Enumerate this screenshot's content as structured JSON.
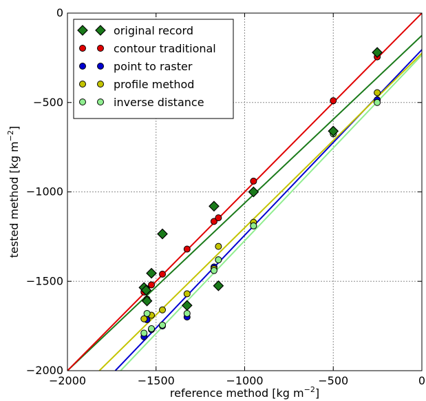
{
  "chart_data": {
    "type": "scatter",
    "title": "",
    "xlabel": "reference method [kg m",
    "xlabel_sup": "−2",
    "xlabel_end": "]",
    "ylabel": "tested method [kg m",
    "ylabel_sup": "−2",
    "ylabel_end": "]",
    "xlim": [
      -2000,
      0
    ],
    "ylim": [
      -2000,
      0
    ],
    "x_ticks": [
      -2000,
      -1500,
      -1000,
      -500,
      0
    ],
    "y_ticks": [
      -2000,
      -1500,
      -1000,
      -500,
      0
    ],
    "x_tick_labels": [
      "−2000",
      "−1500",
      "−1000",
      "−500",
      "0"
    ],
    "y_tick_labels": [
      "−2000",
      "−1500",
      "−1000",
      "−500",
      "0"
    ],
    "grid": true,
    "legend_position": "top-left",
    "series": [
      {
        "name": "original record",
        "marker": "diamond",
        "color": "#1a7a1a",
        "x": [
          -1568,
          -1556,
          -1551,
          -1526,
          -1464,
          -1325,
          -1173,
          -1148,
          -950,
          -500,
          -252
        ],
        "y": [
          -1535,
          -1550,
          -1610,
          -1455,
          -1235,
          -1635,
          -1080,
          -1525,
          -1000,
          -660,
          -220
        ],
        "fit": [
          [
            -2000,
            -2000
          ],
          [
            0,
            -125
          ]
        ]
      },
      {
        "name": "contour traditional",
        "marker": "circle",
        "color": "#e00000",
        "x": [
          -1568,
          -1556,
          -1526,
          -1464,
          -1325,
          -1173,
          -1148,
          -950,
          -500,
          -252
        ],
        "y": [
          -1560,
          -1540,
          -1520,
          -1460,
          -1320,
          -1165,
          -1145,
          -940,
          -490,
          -245
        ],
        "fit": [
          [
            -2000,
            -2000
          ],
          [
            0,
            0
          ]
        ]
      },
      {
        "name": "point to raster",
        "marker": "circle",
        "color": "#0000d0",
        "x": [
          -1568,
          -1551,
          -1526,
          -1464,
          -1325,
          -1173,
          -1148,
          -950,
          -500,
          -252
        ],
        "y": [
          -1810,
          -1715,
          -1770,
          -1750,
          -1700,
          -1420,
          -1380,
          -1190,
          -670,
          -485
        ],
        "fit": [
          [
            -1730,
            -2000
          ],
          [
            0,
            -205
          ]
        ]
      },
      {
        "name": "profile method",
        "marker": "circle",
        "color": "#c4c400",
        "x": [
          -1568,
          -1551,
          -1526,
          -1464,
          -1325,
          -1173,
          -1148,
          -950,
          -500,
          -252
        ],
        "y": [
          -1710,
          -1600,
          -1690,
          -1660,
          -1570,
          -1430,
          -1305,
          -1170,
          -665,
          -445
        ],
        "fit": [
          [
            -1820,
            -2000
          ],
          [
            0,
            -225
          ]
        ]
      },
      {
        "name": "inverse distance",
        "marker": "circle",
        "color": "#90ee90",
        "x": [
          -1568,
          -1551,
          -1526,
          -1464,
          -1325,
          -1173,
          -1148,
          -950,
          -500,
          -252
        ],
        "y": [
          -1790,
          -1680,
          -1765,
          -1745,
          -1680,
          -1440,
          -1380,
          -1190,
          -675,
          -500
        ],
        "fit": [
          [
            -1700,
            -2000
          ],
          [
            0,
            -235
          ]
        ]
      }
    ]
  }
}
